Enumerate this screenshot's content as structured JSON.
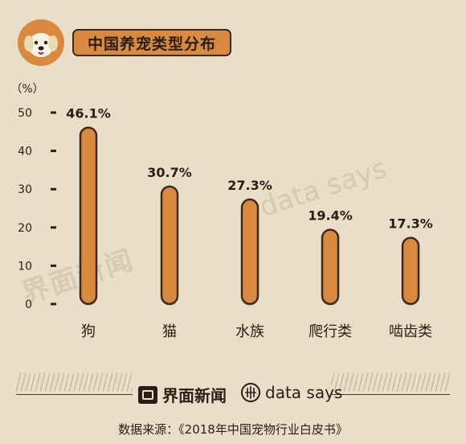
{
  "header": {
    "title": "中国养宠类型分布",
    "logo_icon": "dog-face-icon"
  },
  "chart_data": {
    "type": "bar",
    "title": "中国养宠类型分布",
    "ylabel": "（%）",
    "ylim": [
      0,
      50
    ],
    "yticks": [
      0,
      10,
      20,
      30,
      40,
      50
    ],
    "categories": [
      "狗",
      "猫",
      "水族",
      "爬行类",
      "啮齿类"
    ],
    "values": [
      46.1,
      30.7,
      27.3,
      19.4,
      17.3
    ],
    "data_labels": [
      "46.1%",
      "30.7%",
      "27.3%",
      "19.4%",
      "17.3%"
    ],
    "grid": false,
    "bar_color": "#d98a3f",
    "bar_outline": "#3c2a1e"
  },
  "footer": {
    "brand_jiemian": "界面新闻",
    "brand_datasays": "data says",
    "source": "数据来源：《2018年中国宠物行业白皮书》"
  },
  "watermarks": {
    "left": "界面新闻",
    "right": "data says"
  },
  "colors": {
    "background": "#e9dfc9",
    "accent": "#d98a3f",
    "ink": "#2b1d14"
  }
}
